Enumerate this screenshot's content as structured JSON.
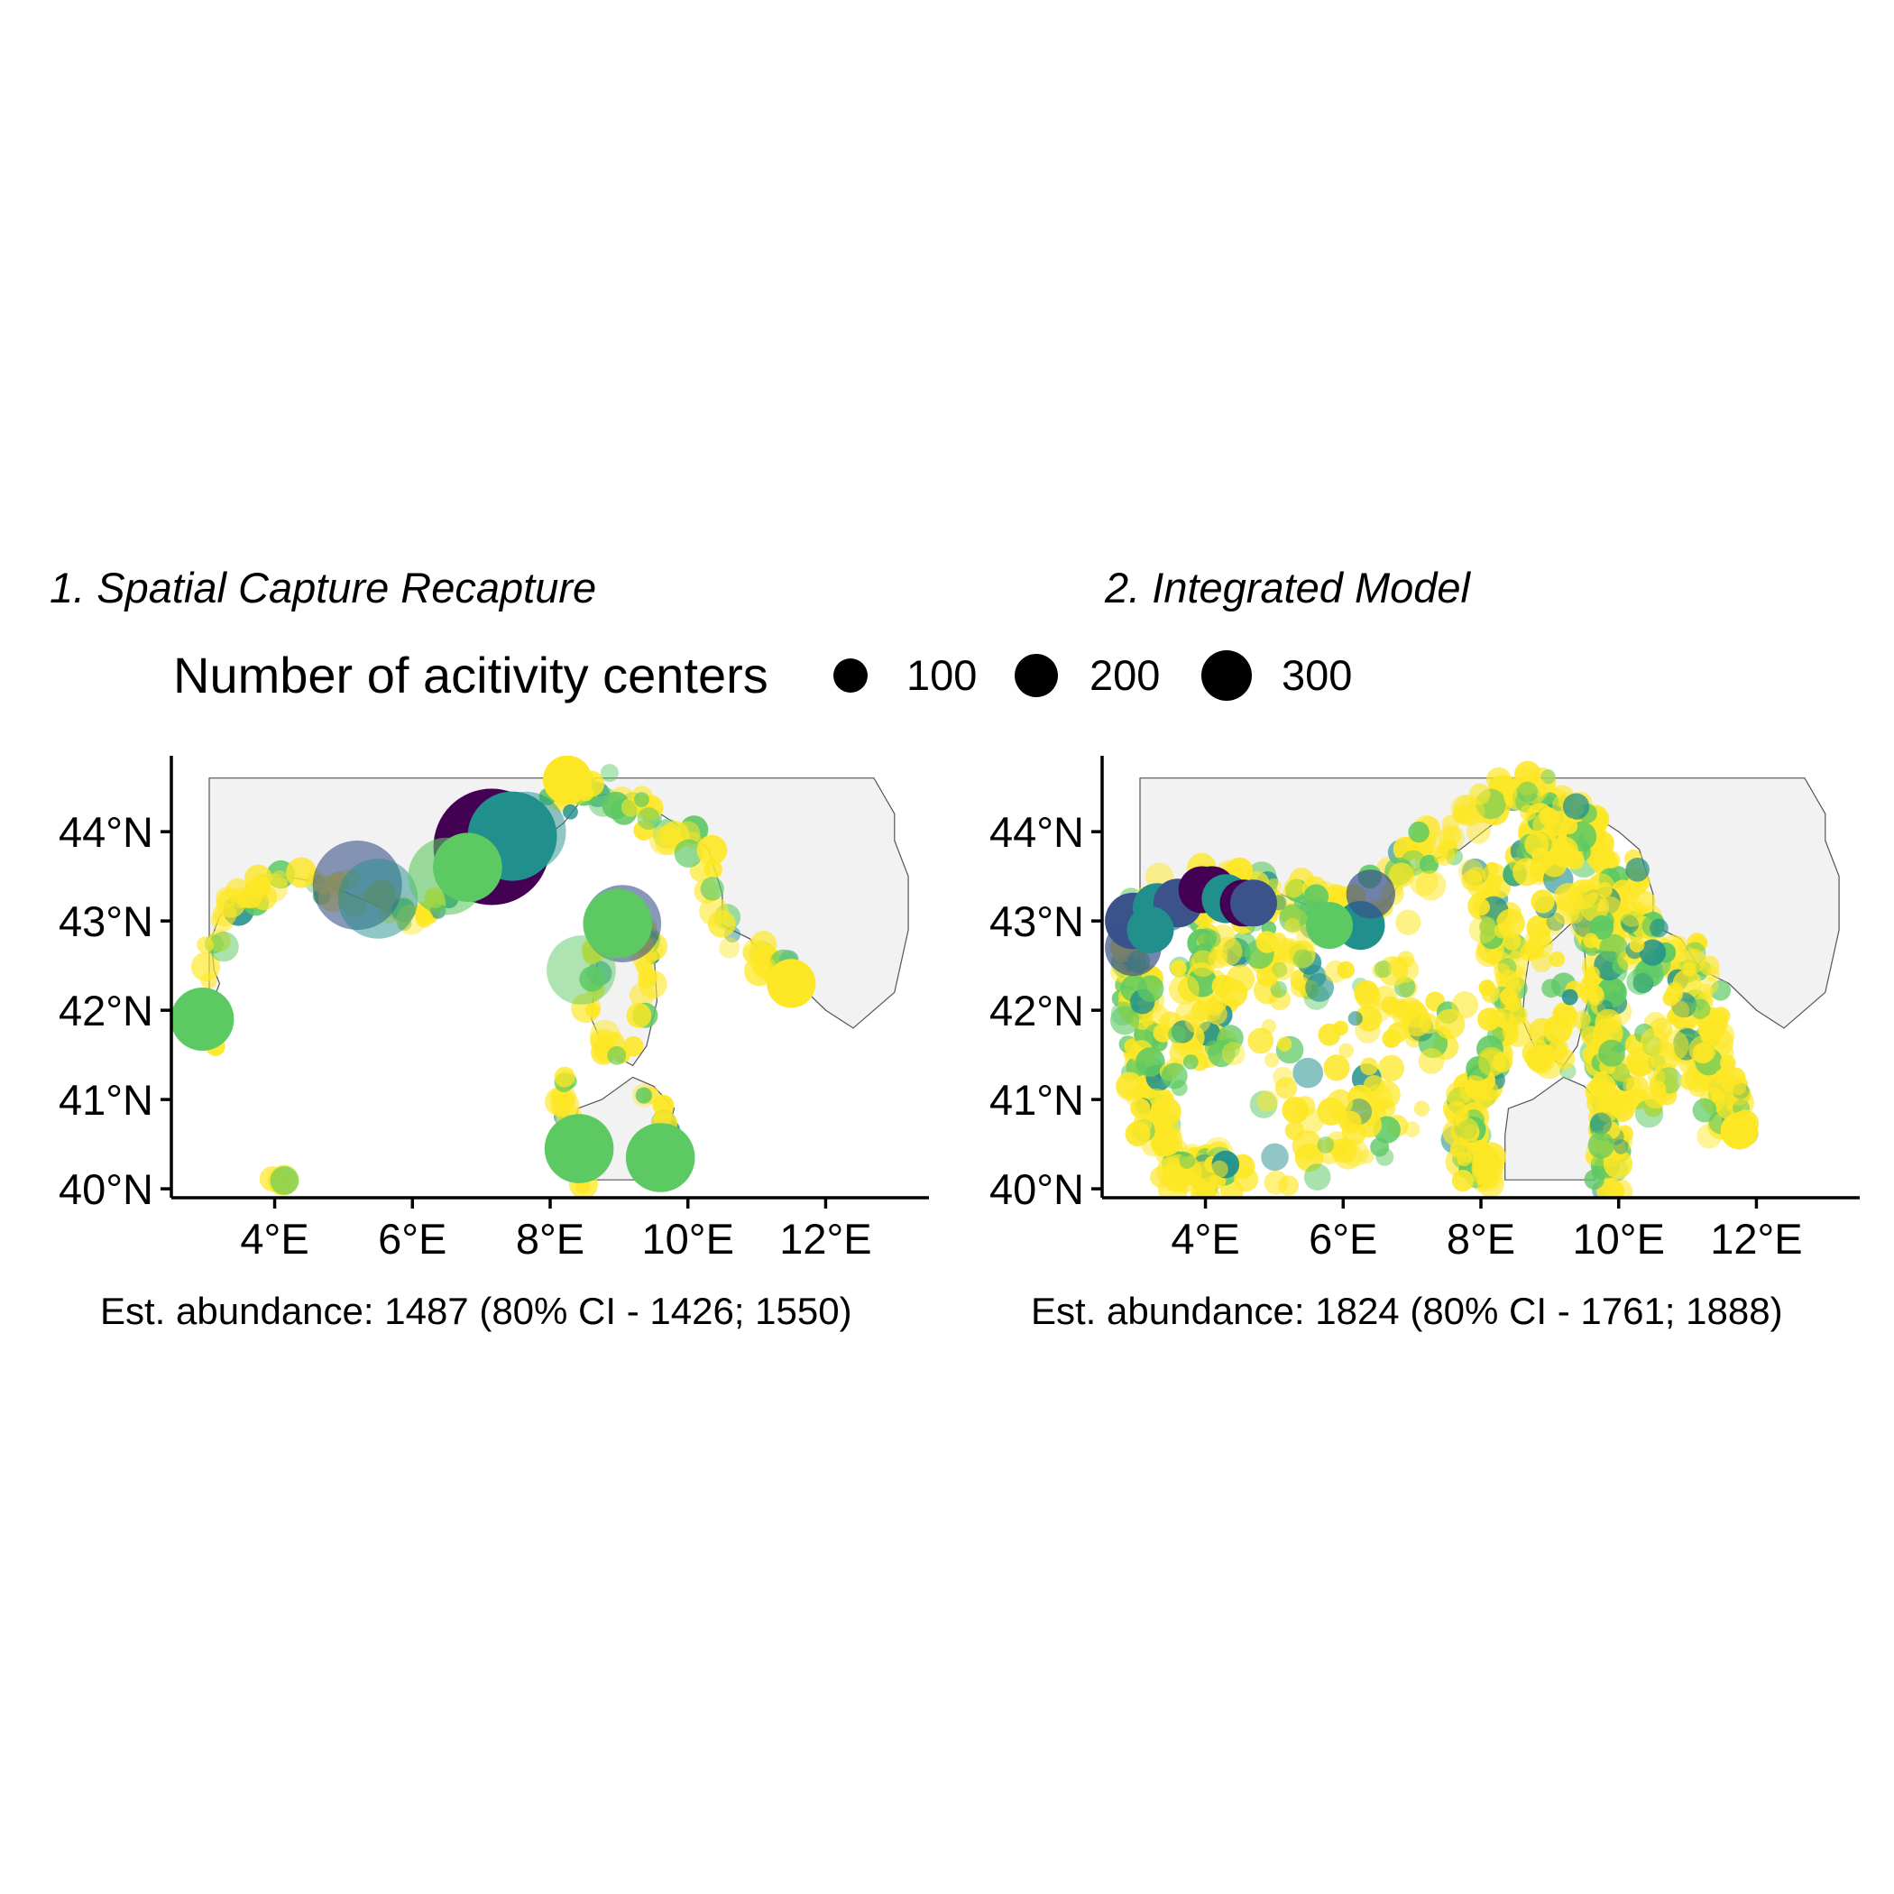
{
  "legend": {
    "title": "Number of acitivity centers",
    "items": [
      {
        "label": "100",
        "value": 100
      },
      {
        "label": "200",
        "value": 200
      },
      {
        "label": "300",
        "value": 300
      }
    ]
  },
  "colors": {
    "land": "#f2f2f2",
    "coast": "#555555",
    "viridis": [
      "#440154",
      "#3b528b",
      "#21908d",
      "#5dc963",
      "#fde725"
    ]
  },
  "chart_data": [
    {
      "type": "scatter",
      "title": "1. Spatial Capture Recapture",
      "caption": "Est. abundance: 1487 (80% CI - 1426; 1550)",
      "xlim": [
        2.5,
        13.5
      ],
      "ylim": [
        39.9,
        44.85
      ],
      "x_ticks": [
        {
          "v": 4,
          "label": "4°E"
        },
        {
          "v": 6,
          "label": "6°E"
        },
        {
          "v": 8,
          "label": "8°E"
        },
        {
          "v": 10,
          "label": "10°E"
        },
        {
          "v": 12,
          "label": "12°E"
        }
      ],
      "y_ticks": [
        {
          "v": 40,
          "label": "40°N"
        },
        {
          "v": 41,
          "label": "41°N"
        },
        {
          "v": 42,
          "label": "42°N"
        },
        {
          "v": 43,
          "label": "43°N"
        },
        {
          "v": 44,
          "label": "44°N"
        }
      ],
      "points": [
        {
          "lon": 7.15,
          "lat": 43.83,
          "n": 340,
          "c": 0
        },
        {
          "lon": 7.15,
          "lat": 43.87,
          "n": 300,
          "c": 0,
          "alpha": 0.5
        },
        {
          "lon": 7.45,
          "lat": 43.95,
          "n": 200,
          "c": 2
        },
        {
          "lon": 7.65,
          "lat": 44.0,
          "n": 160,
          "c": 2,
          "alpha": 0.5
        },
        {
          "lon": 5.2,
          "lat": 43.4,
          "n": 200,
          "c": 1,
          "alpha": 0.6
        },
        {
          "lon": 5.5,
          "lat": 43.25,
          "n": 160,
          "c": 2,
          "alpha": 0.5
        },
        {
          "lon": 6.5,
          "lat": 43.5,
          "n": 150,
          "c": 3,
          "alpha": 0.6
        },
        {
          "lon": 6.8,
          "lat": 43.6,
          "n": 120,
          "c": 3
        },
        {
          "lon": 9.05,
          "lat": 42.97,
          "n": 150,
          "c": 1,
          "alpha": 0.6
        },
        {
          "lon": 8.98,
          "lat": 42.97,
          "n": 120,
          "c": 3
        },
        {
          "lon": 8.45,
          "lat": 42.45,
          "n": 120,
          "c": 3,
          "alpha": 0.5
        },
        {
          "lon": 8.42,
          "lat": 40.45,
          "n": 120,
          "c": 3
        },
        {
          "lon": 9.6,
          "lat": 40.35,
          "n": 120,
          "c": 3
        },
        {
          "lon": 2.95,
          "lat": 41.9,
          "n": 100,
          "c": 3
        },
        {
          "lon": 8.25,
          "lat": 44.58,
          "n": 60,
          "c": 4
        },
        {
          "lon": 11.5,
          "lat": 42.3,
          "n": 60,
          "c": 4
        }
      ],
      "clusters": [
        {
          "path": [
            [
              3.15,
              42.3
            ],
            [
              3.1,
              42.7
            ],
            [
              3.25,
              43.1
            ],
            [
              3.7,
              43.35
            ],
            [
              4.2,
              43.45
            ],
            [
              4.7,
              43.35
            ],
            [
              5.1,
              43.3
            ],
            [
              5.6,
              43.2
            ],
            [
              6.0,
              43.1
            ],
            [
              6.4,
              43.2
            ],
            [
              6.9,
              43.55
            ],
            [
              7.3,
              43.75
            ],
            [
              7.9,
              44.1
            ],
            [
              8.3,
              44.45
            ],
            [
              8.8,
              44.5
            ],
            [
              9.3,
              44.25
            ],
            [
              9.8,
              44.05
            ],
            [
              10.2,
              43.8
            ],
            [
              10.3,
              43.3
            ],
            [
              10.5,
              42.9
            ],
            [
              11.0,
              42.6
            ],
            [
              11.5,
              42.35
            ]
          ],
          "count": 120,
          "jitter": 0.16
        },
        {
          "path": [
            [
              3.15,
              42.3
            ],
            [
              3.05,
              41.9
            ],
            [
              3.1,
              41.6
            ]
          ],
          "count": 12,
          "jitter": 0.08
        },
        {
          "path": [
            [
              9.35,
              43.0
            ],
            [
              9.45,
              42.7
            ],
            [
              9.45,
              42.4
            ],
            [
              9.35,
              42.0
            ],
            [
              9.15,
              41.55
            ],
            [
              8.75,
              41.6
            ],
            [
              8.6,
              41.95
            ],
            [
              8.6,
              42.3
            ],
            [
              8.7,
              42.7
            ],
            [
              8.95,
              42.95
            ]
          ],
          "count": 40,
          "jitter": 0.1
        },
        {
          "path": [
            [
              8.25,
              41.2
            ],
            [
              8.2,
              40.9
            ],
            [
              8.3,
              40.55
            ],
            [
              8.4,
              40.2
            ],
            [
              8.5,
              40.05
            ]
          ],
          "count": 18,
          "jitter": 0.08
        },
        {
          "path": [
            [
              9.2,
              41.2
            ],
            [
              9.6,
              40.95
            ],
            [
              9.75,
              40.6
            ],
            [
              9.65,
              40.3
            ]
          ],
          "count": 12,
          "jitter": 0.07
        },
        {
          "path": [
            [
              3.9,
              40.1
            ],
            [
              4.25,
              40.1
            ]
          ],
          "count": 6,
          "jitter": 0.02
        }
      ]
    },
    {
      "type": "scatter",
      "title": "2. Integrated Model",
      "caption": "Est. abundance: 1824 (80% CI - 1761; 1888)",
      "xlim": [
        2.5,
        13.5
      ],
      "ylim": [
        39.9,
        44.85
      ],
      "x_ticks": [
        {
          "v": 4,
          "label": "4°E"
        },
        {
          "v": 6,
          "label": "6°E"
        },
        {
          "v": 8,
          "label": "8°E"
        },
        {
          "v": 10,
          "label": "10°E"
        },
        {
          "v": 12,
          "label": "12°E"
        }
      ],
      "y_ticks": [
        {
          "v": 40,
          "label": "40°N"
        },
        {
          "v": 41,
          "label": "41°N"
        },
        {
          "v": 42,
          "label": "42°N"
        },
        {
          "v": 43,
          "label": "43°N"
        },
        {
          "v": 44,
          "label": "44°N"
        }
      ],
      "points": [
        {
          "lon": 2.95,
          "lat": 43.0,
          "n": 80,
          "c": 1
        },
        {
          "lon": 2.95,
          "lat": 42.7,
          "n": 80,
          "c": 1,
          "alpha": 0.7
        },
        {
          "lon": 3.3,
          "lat": 43.15,
          "n": 60,
          "c": 2
        },
        {
          "lon": 3.6,
          "lat": 43.2,
          "n": 60,
          "c": 1
        },
        {
          "lon": 3.95,
          "lat": 43.35,
          "n": 55,
          "c": 0
        },
        {
          "lon": 4.1,
          "lat": 43.35,
          "n": 55,
          "c": 0
        },
        {
          "lon": 4.3,
          "lat": 43.25,
          "n": 60,
          "c": 2
        },
        {
          "lon": 4.55,
          "lat": 43.2,
          "n": 55,
          "c": 0
        },
        {
          "lon": 4.7,
          "lat": 43.2,
          "n": 55,
          "c": 1
        },
        {
          "lon": 3.2,
          "lat": 42.9,
          "n": 55,
          "c": 2
        },
        {
          "lon": 6.25,
          "lat": 42.95,
          "n": 60,
          "c": 2
        },
        {
          "lon": 6.4,
          "lat": 43.3,
          "n": 60,
          "c": 1,
          "alpha": 0.7
        },
        {
          "lon": 5.8,
          "lat": 42.95,
          "n": 55,
          "c": 3
        },
        {
          "lon": 11.75,
          "lat": 40.65,
          "n": 35,
          "c": 4
        }
      ],
      "clusters": [
        {
          "path": [
            [
              3.0,
              42.9
            ],
            [
              3.3,
              43.15
            ],
            [
              3.8,
              43.35
            ],
            [
              4.3,
              43.35
            ],
            [
              4.8,
              43.3
            ],
            [
              5.3,
              43.2
            ],
            [
              5.8,
              43.05
            ],
            [
              6.3,
              43.1
            ],
            [
              6.8,
              43.5
            ],
            [
              7.3,
              43.8
            ],
            [
              7.9,
              44.2
            ],
            [
              8.3,
              44.5
            ],
            [
              8.8,
              44.45
            ],
            [
              9.3,
              44.2
            ],
            [
              9.7,
              43.9
            ],
            [
              10.0,
              43.5
            ],
            [
              10.2,
              43.0
            ],
            [
              10.5,
              42.8
            ],
            [
              11.0,
              42.5
            ],
            [
              11.4,
              42.2
            ]
          ],
          "count": 230,
          "jitter": 0.25
        },
        {
          "path": [
            [
              3.0,
              42.9
            ],
            [
              3.0,
              42.4
            ],
            [
              3.05,
              41.9
            ],
            [
              3.1,
              41.4
            ],
            [
              3.2,
              40.9
            ],
            [
              3.4,
              40.5
            ],
            [
              3.7,
              40.2
            ],
            [
              4.1,
              40.15
            ],
            [
              4.4,
              40.2
            ]
          ],
          "count": 150,
          "jitter": 0.25
        },
        {
          "path": [
            [
              3.4,
              42.8
            ],
            [
              4.4,
              42.8
            ],
            [
              5.4,
              42.6
            ],
            [
              4.0,
              42.2
            ],
            [
              3.6,
              41.4
            ],
            [
              4.5,
              42.4
            ]
          ],
          "count": 100,
          "jitter": 0.35
        },
        {
          "path": [
            [
              8.0,
              43.8
            ],
            [
              8.2,
              43.0
            ],
            [
              8.3,
              42.4
            ],
            [
              8.4,
              41.8
            ],
            [
              8.0,
              41.3
            ],
            [
              7.8,
              40.8
            ],
            [
              7.9,
              40.3
            ],
            [
              8.0,
              40.1
            ]
          ],
          "count": 150,
          "jitter": 0.22
        },
        {
          "path": [
            [
              9.6,
              43.6
            ],
            [
              9.7,
              42.9
            ],
            [
              9.8,
              42.3
            ],
            [
              9.8,
              41.6
            ],
            [
              9.9,
              41.0
            ],
            [
              9.9,
              40.5
            ],
            [
              9.8,
              40.1
            ]
          ],
          "count": 150,
          "jitter": 0.22
        },
        {
          "path": [
            [
              10.2,
              42.7
            ],
            [
              10.8,
              42.3
            ],
            [
              11.2,
              41.8
            ],
            [
              11.5,
              41.2
            ],
            [
              11.6,
              40.8
            ],
            [
              10.6,
              41.8
            ],
            [
              10.4,
              41.0
            ]
          ],
          "count": 130,
          "jitter": 0.3
        },
        {
          "path": [
            [
              8.7,
              44.3
            ],
            [
              9.2,
              43.8
            ],
            [
              8.6,
              43.5
            ],
            [
              8.9,
              44.0
            ],
            [
              9.5,
              44.2
            ]
          ],
          "count": 60,
          "jitter": 0.25
        },
        {
          "path": [
            [
              9.4,
              43.3
            ],
            [
              8.8,
              42.9
            ],
            [
              9.3,
              42.0
            ],
            [
              8.9,
              41.6
            ],
            [
              9.3,
              41.5
            ]
          ],
          "count": 40,
          "jitter": 0.2
        },
        {
          "path": [
            [
              5.0,
              42.5
            ],
            [
              6.5,
              42.2
            ],
            [
              7.2,
              41.5
            ],
            [
              5.8,
              41.0
            ],
            [
              6.8,
              40.6
            ],
            [
              5.2,
              40.4
            ],
            [
              4.8,
              41.7
            ],
            [
              7.4,
              42.6
            ],
            [
              6.2,
              41.6
            ]
          ],
          "count": 110,
          "jitter": 0.5
        }
      ]
    }
  ]
}
